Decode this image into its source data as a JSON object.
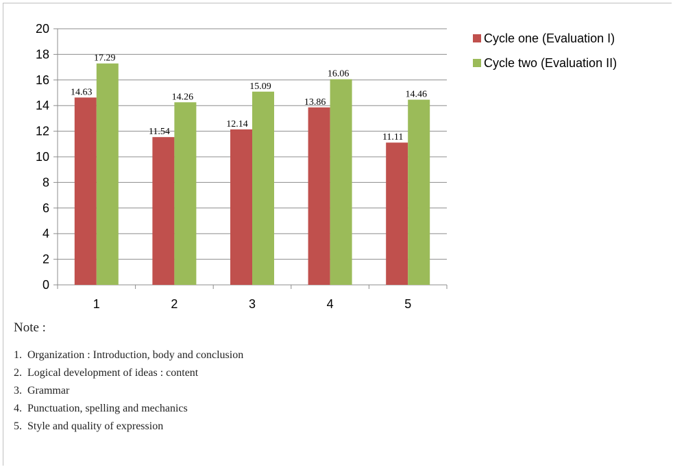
{
  "chart_data": {
    "type": "bar",
    "categories": [
      "1",
      "2",
      "3",
      "4",
      "5"
    ],
    "series": [
      {
        "name": "Cycle one (Evaluation I)",
        "values": [
          14.63,
          11.54,
          12.14,
          13.86,
          11.11
        ],
        "color": "#c0504d"
      },
      {
        "name": "Cycle two (Evaluation II)",
        "values": [
          17.29,
          14.26,
          15.09,
          16.06,
          14.46
        ],
        "color": "#9bbb59"
      }
    ],
    "data_labels": {
      "Cycle one (Evaluation I)": [
        "14.63",
        "11.54",
        "12.14",
        "13.86",
        "11.11"
      ],
      "Cycle two (Evaluation II)": [
        "17.29",
        "14.26",
        "15.09",
        "16.06",
        "14.46"
      ]
    },
    "title": "",
    "xlabel": "",
    "ylabel": "",
    "ylim": [
      0,
      20
    ],
    "yticks": [
      "0",
      "2",
      "4",
      "6",
      "8",
      "10",
      "12",
      "14",
      "16",
      "18",
      "20"
    ],
    "grid": true,
    "legend": "right"
  },
  "note": {
    "title": "Note :",
    "items": [
      {
        "num": "1.",
        "text": "Organization : Introduction, body and conclusion"
      },
      {
        "num": "2.",
        "text": "Logical development of ideas : content"
      },
      {
        "num": "3.",
        "text": "Grammar"
      },
      {
        "num": "4.",
        "text": "Punctuation, spelling and mechanics"
      },
      {
        "num": "5.",
        "text": "Style and quality of expression"
      }
    ]
  }
}
